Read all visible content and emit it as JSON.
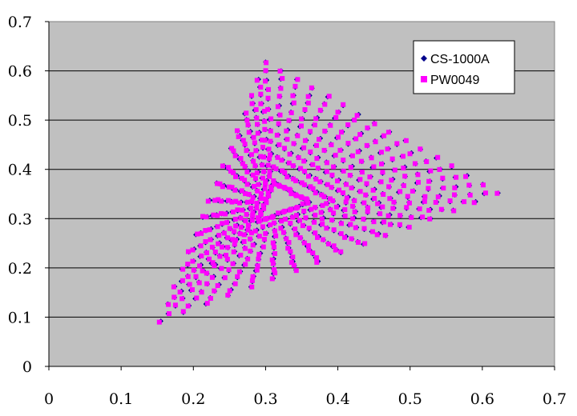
{
  "chart_data": {
    "type": "scatter",
    "title": "",
    "xlabel": "",
    "ylabel": "",
    "xlim": [
      0,
      0.7
    ],
    "ylim": [
      0,
      0.7
    ],
    "x_ticks": [
      "0",
      "0.1",
      "0.2",
      "0.3",
      "0.4",
      "0.5",
      "0.6",
      "0.7"
    ],
    "y_ticks": [
      "0",
      "0.1",
      "0.2",
      "0.3",
      "0.4",
      "0.5",
      "0.6",
      "0.7"
    ],
    "grid": "horizontal",
    "plot_background": "#c0c0c0",
    "legend_position": "top-right",
    "gamut_vertices": {
      "red": [
        0.622,
        0.352
      ],
      "green": [
        0.3,
        0.618
      ],
      "blue": [
        0.155,
        0.092
      ],
      "white": [
        0.313,
        0.33
      ]
    },
    "series": [
      {
        "name": "CS-1000A",
        "marker": "diamond",
        "color": "#00008b"
      },
      {
        "name": "PW0049",
        "marker": "square",
        "color": "#ff00ff"
      }
    ]
  }
}
